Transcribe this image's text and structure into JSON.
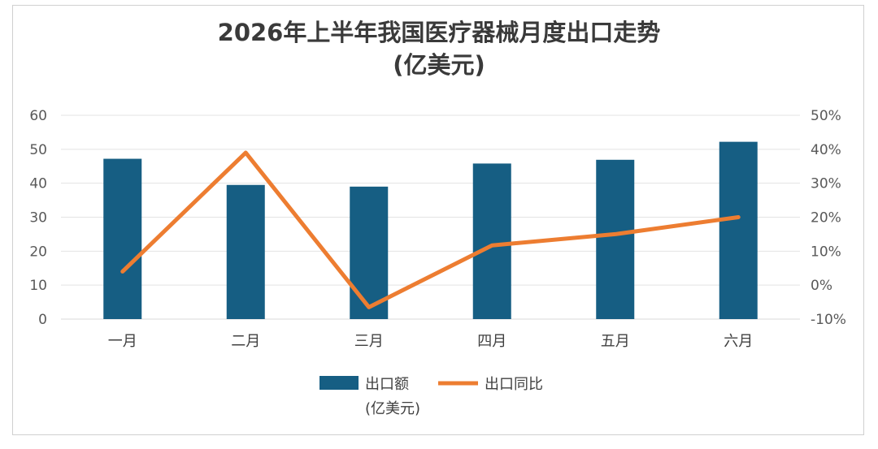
{
  "chart_data": {
    "type": "bar",
    "title_line1": "2026年上半年我国医疗器械月度出口走势",
    "title_line2": "(亿美元)",
    "categories": [
      "一月",
      "二月",
      "三月",
      "四月",
      "五月",
      "六月"
    ],
    "series": [
      {
        "name": "出口额",
        "name_sub": "(亿美元)",
        "type": "bar",
        "axis": "left",
        "color": "#165E83",
        "values": [
          47.2,
          39.5,
          39.0,
          45.8,
          46.9,
          52.2
        ]
      },
      {
        "name": "出口同比",
        "type": "line",
        "axis": "right",
        "color": "#ED7D31",
        "values": [
          0.04,
          0.39,
          -0.065,
          0.117,
          0.15,
          0.2
        ]
      }
    ],
    "y_left": {
      "min": 0,
      "max": 60,
      "ticks": [
        "0",
        "10",
        "20",
        "30",
        "40",
        "50",
        "60"
      ]
    },
    "y_right": {
      "min": -0.1,
      "max": 0.5,
      "ticks": [
        "-10%",
        "0%",
        "10%",
        "20%",
        "30%",
        "40%",
        "50%"
      ]
    },
    "grid": true,
    "legend_position": "bottom"
  }
}
